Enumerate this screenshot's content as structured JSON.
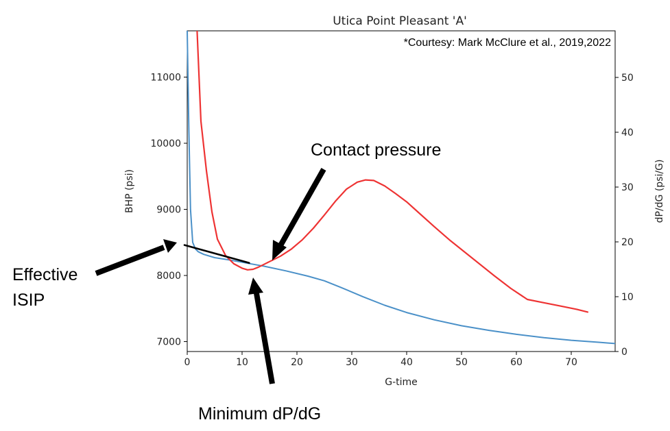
{
  "chart_data": {
    "type": "line",
    "title": "Utica Point Pleasant 'A'",
    "subtitle": "*Courtesy: Mark McClure et al., 2019,2022",
    "xlabel": "G-time",
    "ylabel": "BHP (psi)",
    "y2label": "dP/dG (psi/G)",
    "xlim": [
      0,
      78
    ],
    "ylim": [
      6850,
      11700
    ],
    "y2lim": [
      0,
      58.5
    ],
    "xticks": [
      0,
      10,
      20,
      30,
      40,
      50,
      60,
      70
    ],
    "yticks": [
      7000,
      8000,
      9000,
      10000,
      11000
    ],
    "y2ticks": [
      0,
      10,
      20,
      30,
      40,
      50
    ],
    "grid": false,
    "series": [
      {
        "axis": "left",
        "color": "#4a90c8",
        "x": [
          0,
          0.3,
          0.6,
          1,
          1.5,
          2,
          3,
          5,
          8,
          10,
          14,
          18,
          22,
          25,
          28,
          32,
          36,
          40,
          45,
          50,
          55,
          60,
          65,
          70,
          75,
          78
        ],
        "y": [
          11700,
          10200,
          9000,
          8500,
          8400,
          8360,
          8320,
          8270,
          8230,
          8200,
          8140,
          8070,
          7990,
          7920,
          7820,
          7680,
          7550,
          7440,
          7330,
          7240,
          7170,
          7110,
          7060,
          7020,
          6990,
          6970
        ]
      },
      {
        "axis": "right",
        "color": "#ee3333",
        "x": [
          1.8,
          2.5,
          3.5,
          4.5,
          5.5,
          7,
          8.5,
          10,
          11,
          12,
          13,
          14,
          15,
          17,
          19,
          21,
          23,
          25,
          27,
          29,
          31,
          32.5,
          34,
          36,
          38,
          40,
          42,
          45,
          48,
          52,
          56,
          59,
          62,
          65,
          68,
          71,
          73
        ],
        "y": [
          58.5,
          42,
          33,
          25.5,
          20.5,
          17.5,
          16,
          15.2,
          14.9,
          15,
          15.4,
          15.9,
          16.4,
          17.4,
          18.7,
          20.4,
          22.5,
          24.9,
          27.4,
          29.6,
          30.9,
          31.3,
          31.2,
          30.2,
          28.8,
          27.3,
          25.5,
          22.8,
          20.2,
          17,
          13.8,
          11.5,
          9.5,
          8.9,
          8.3,
          7.7,
          7.2
        ]
      },
      {
        "axis": "left",
        "color": "#000000",
        "x": [
          -0.5,
          11.3
        ],
        "y": [
          8460,
          8190
        ]
      }
    ],
    "annotations": [
      {
        "label": "Contact pressure",
        "line2": ""
      },
      {
        "label": "Effective",
        "line2": "ISIP"
      },
      {
        "label": "Minimum dP/dG",
        "line2": ""
      }
    ]
  }
}
